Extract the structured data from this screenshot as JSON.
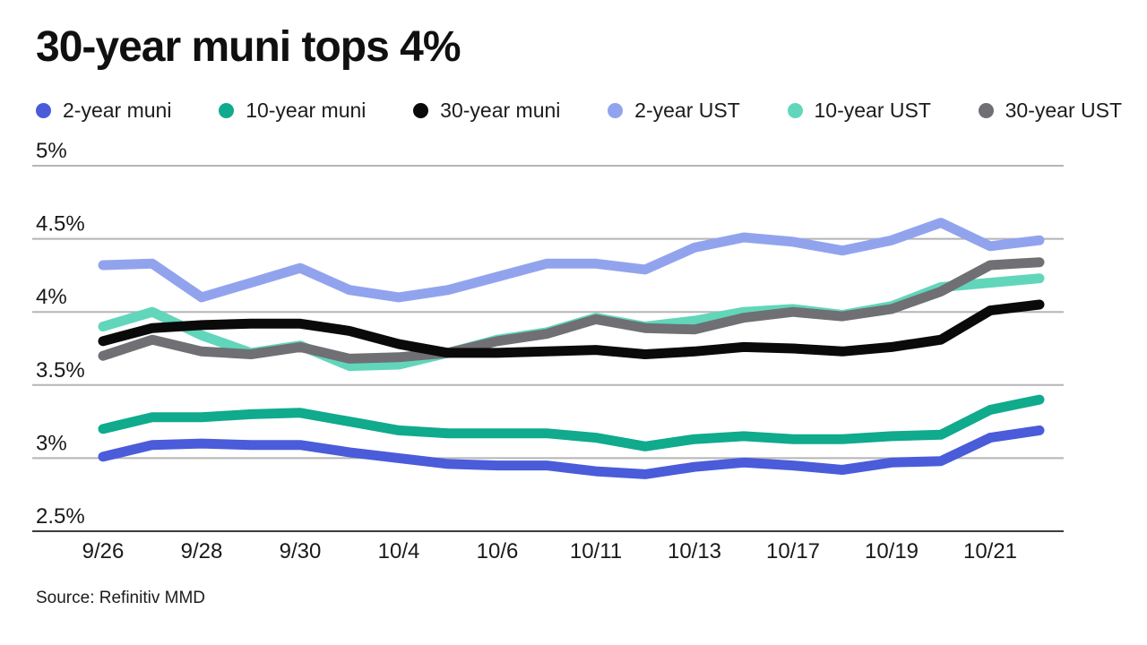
{
  "header": {
    "title": "30-year muni tops 4%"
  },
  "legend": {
    "items": [
      {
        "id": "2-year-muni",
        "label": "2-year muni",
        "color": "#4a5cd9"
      },
      {
        "id": "10-year-muni",
        "label": "10-year muni",
        "color": "#10aa8d"
      },
      {
        "id": "30-year-muni",
        "label": "30-year muni",
        "color": "#0a0a0a"
      },
      {
        "id": "2-year-ust",
        "label": "2-year UST",
        "color": "#92a3ee"
      },
      {
        "id": "10-year-ust",
        "label": "10-year UST",
        "color": "#61d6ba"
      },
      {
        "id": "30-year-ust",
        "label": "30-year UST",
        "color": "#706f74"
      }
    ]
  },
  "chart_data": {
    "type": "line",
    "title": "30-year muni tops 4%",
    "x": [
      "9/26",
      "9/27",
      "9/28",
      "9/29",
      "9/30",
      "10/3",
      "10/4",
      "10/5",
      "10/6",
      "10/7",
      "10/11",
      "10/12",
      "10/13",
      "10/14",
      "10/17",
      "10/18",
      "10/19",
      "10/20",
      "10/21",
      "10/24"
    ],
    "x_tick_labels": [
      "9/26",
      "9/28",
      "9/30",
      "10/4",
      "10/6",
      "10/11",
      "10/13",
      "10/17",
      "10/19",
      "10/21"
    ],
    "x_tick_indices": [
      0,
      2,
      4,
      6,
      8,
      10,
      12,
      14,
      16,
      18
    ],
    "y_ticks": [
      {
        "label": "5%",
        "value": 5.0
      },
      {
        "label": "4.5%",
        "value": 4.5
      },
      {
        "label": "4%",
        "value": 4.0
      },
      {
        "label": "3.5%",
        "value": 3.5
      },
      {
        "label": "3%",
        "value": 3.0
      },
      {
        "label": "2.5%",
        "value": 2.5
      }
    ],
    "ylim": [
      2.5,
      5.0
    ],
    "grid": true,
    "legend_position": "top",
    "unit": "percent",
    "series": [
      {
        "name": "2-year muni",
        "color": "#4a5cd9",
        "values": [
          3.01,
          3.09,
          3.1,
          3.09,
          3.09,
          3.04,
          3.0,
          2.96,
          2.95,
          2.95,
          2.91,
          2.89,
          2.94,
          2.97,
          2.95,
          2.92,
          2.97,
          2.98,
          3.14,
          3.19
        ]
      },
      {
        "name": "10-year muni",
        "color": "#10aa8d",
        "values": [
          3.2,
          3.28,
          3.28,
          3.3,
          3.31,
          3.25,
          3.19,
          3.17,
          3.17,
          3.17,
          3.14,
          3.08,
          3.13,
          3.15,
          3.13,
          3.13,
          3.15,
          3.16,
          3.33,
          3.4
        ]
      },
      {
        "name": "30-year muni",
        "color": "#0a0a0a",
        "values": [
          3.8,
          3.89,
          3.91,
          3.92,
          3.92,
          3.87,
          3.78,
          3.72,
          3.72,
          3.73,
          3.74,
          3.71,
          3.73,
          3.76,
          3.75,
          3.73,
          3.76,
          3.81,
          4.01,
          4.05
        ]
      },
      {
        "name": "2-year UST",
        "color": "#92a3ee",
        "values": [
          4.32,
          4.33,
          4.1,
          4.2,
          4.3,
          4.15,
          4.1,
          4.15,
          4.24,
          4.33,
          4.33,
          4.29,
          4.44,
          4.51,
          4.48,
          4.42,
          4.49,
          4.61,
          4.45,
          4.49
        ]
      },
      {
        "name": "10-year UST",
        "color": "#61d6ba",
        "values": [
          3.9,
          4.0,
          3.84,
          3.72,
          3.77,
          3.63,
          3.64,
          3.72,
          3.81,
          3.86,
          3.96,
          3.9,
          3.94,
          4.0,
          4.02,
          3.98,
          4.04,
          4.17,
          4.2,
          4.23
        ]
      },
      {
        "name": "30-year UST",
        "color": "#706f74",
        "values": [
          3.7,
          3.81,
          3.73,
          3.71,
          3.76,
          3.68,
          3.69,
          3.72,
          3.8,
          3.85,
          3.95,
          3.89,
          3.88,
          3.96,
          4.0,
          3.97,
          4.02,
          4.14,
          4.32,
          4.34
        ]
      }
    ],
    "draw_order": [
      "2-year UST",
      "10-year UST",
      "30-year UST",
      "2-year muni",
      "10-year muni",
      "30-year muni"
    ]
  },
  "source": {
    "text": "Source: Refinitiv MMD"
  }
}
